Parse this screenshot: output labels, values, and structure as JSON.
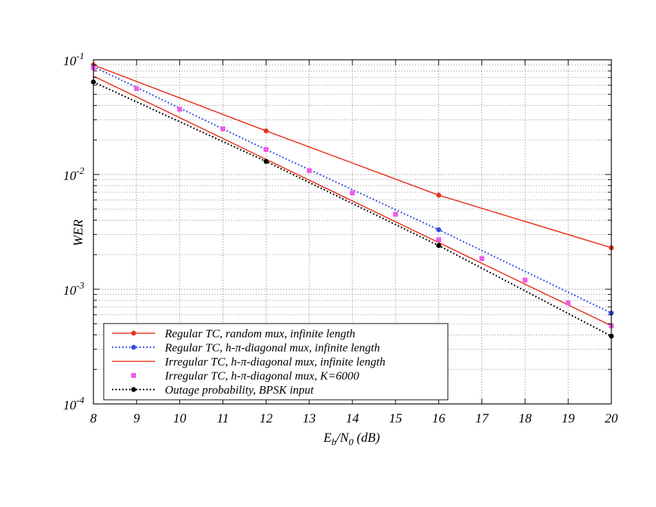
{
  "chart_data": {
    "type": "line",
    "xlabel": "E_b/N_0 (dB)",
    "xlabel_parts": {
      "main": "E",
      "sub1": "b",
      "mid": "/N",
      "sub2": "0",
      "tail": " (dB)"
    },
    "ylabel": "WER",
    "xlim": [
      8,
      20
    ],
    "ylim": [
      0.0001,
      0.1
    ],
    "yscale": "log",
    "grid": true,
    "legend_position": "bottom-left",
    "x_ticks": [
      "8",
      "9",
      "10",
      "11",
      "12",
      "13",
      "14",
      "15",
      "16",
      "17",
      "18",
      "19",
      "20"
    ],
    "y_ticks": [
      {
        "base": "10",
        "exp": "-1"
      },
      {
        "base": "10",
        "exp": "-2"
      },
      {
        "base": "10",
        "exp": "-3"
      },
      {
        "base": "10",
        "exp": "-4"
      }
    ],
    "series": [
      {
        "name": "Regular TC, random mux, infinite length",
        "color": "#e8351e",
        "line": "solid",
        "marker": "circle",
        "points": [
          [
            8,
            0.09
          ],
          [
            12,
            0.024
          ],
          [
            16,
            0.0066
          ],
          [
            20,
            0.0023
          ]
        ]
      },
      {
        "name": "Regular TC, h-π-diagonal mux, infinite length",
        "color": "#2f4de0",
        "line": "dotted",
        "marker": "circle",
        "points": [
          [
            8,
            0.087
          ],
          [
            12,
            0.0165
          ],
          [
            16,
            0.0033
          ],
          [
            20,
            0.00062
          ]
        ]
      },
      {
        "name": "Irregular TC, h-π-diagonal mux, infinite length",
        "color": "#e8351e",
        "line": "solid",
        "marker": "none",
        "points": [
          [
            8,
            0.072
          ],
          [
            20,
            0.00048
          ]
        ]
      },
      {
        "name": "Irregular TC, h-π-diagonal mux, K=6000",
        "color": "#ee5cee",
        "line": "none",
        "marker": "square",
        "points": [
          [
            8,
            0.085
          ],
          [
            9,
            0.056
          ],
          [
            10,
            0.037
          ],
          [
            11,
            0.025
          ],
          [
            12,
            0.0165
          ],
          [
            13,
            0.0108
          ],
          [
            14,
            0.0069
          ],
          [
            15,
            0.0045
          ],
          [
            16,
            0.0027
          ],
          [
            17,
            0.00185
          ],
          [
            18,
            0.0012
          ],
          [
            19,
            0.00076
          ],
          [
            20,
            0.00048
          ]
        ]
      },
      {
        "name": "Outage probability, BPSK input",
        "color": "#000000",
        "line": "dotted",
        "marker": "circle",
        "points": [
          [
            8,
            0.064
          ],
          [
            12,
            0.013
          ],
          [
            16,
            0.0024
          ],
          [
            20,
            0.00039
          ]
        ]
      }
    ]
  }
}
